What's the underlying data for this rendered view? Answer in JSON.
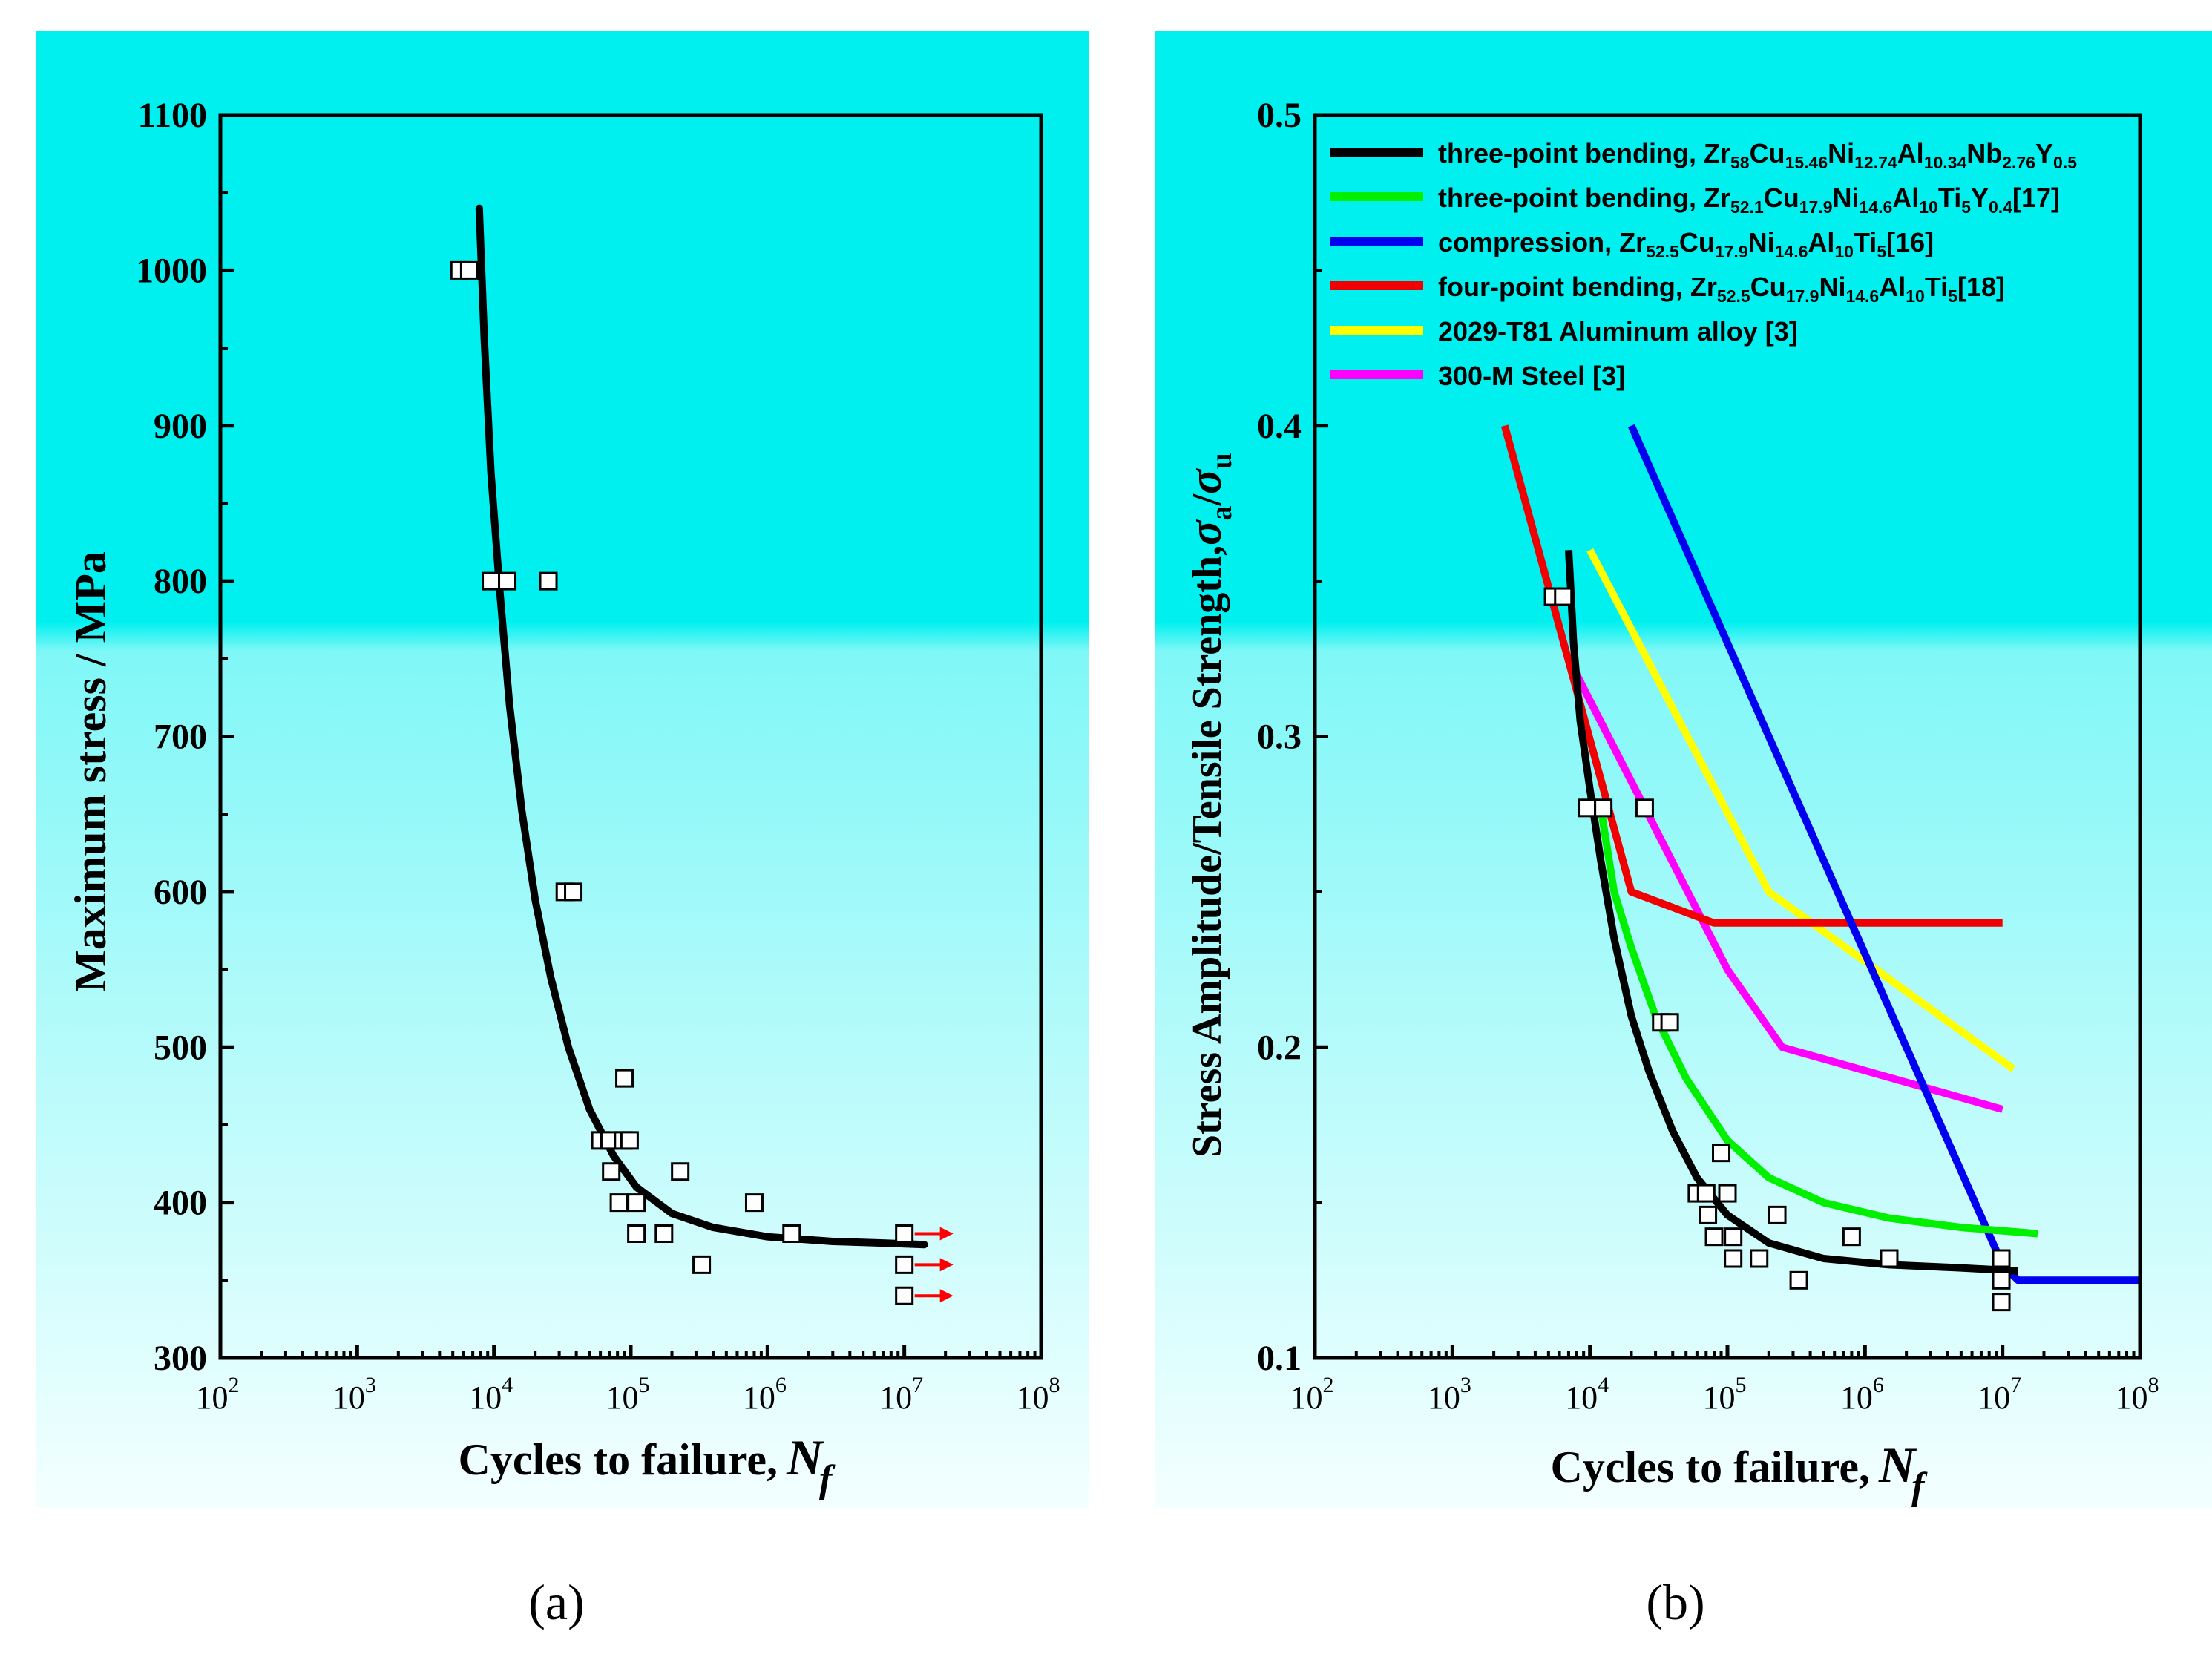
{
  "figure": {
    "captions": [
      "(a)",
      "(b)"
    ],
    "background_colors": {
      "top": "#00f0f0",
      "bottom": "#f4ffff"
    }
  },
  "chart_data": [
    {
      "type": "scatter",
      "panel": "a",
      "caption": "(a)",
      "xlabel": "Cycles to failure, N_f",
      "xlabel_text": "Cycles to failure,",
      "xlabel_var": "N",
      "xlabel_sub": "f",
      "ylabel": "Maximum stress / MPa",
      "xscale": "log",
      "xlim": [
        100,
        100000000
      ],
      "ylim": [
        300,
        1100
      ],
      "xticks": [
        {
          "value": 100,
          "exp": "2"
        },
        {
          "value": 1000,
          "exp": "3"
        },
        {
          "value": 10000,
          "exp": "4"
        },
        {
          "value": 100000,
          "exp": "5"
        },
        {
          "value": 1000000,
          "exp": "6"
        },
        {
          "value": 10000000,
          "exp": "7"
        },
        {
          "value": 100000000,
          "exp": "8"
        }
      ],
      "yticks": [
        "300",
        "400",
        "500",
        "600",
        "700",
        "800",
        "900",
        "1000",
        "1100"
      ],
      "fit_curve": {
        "color": "#000000",
        "points": [
          [
            7800,
            1040
          ],
          [
            8500,
            955
          ],
          [
            9500,
            870
          ],
          [
            11000,
            795
          ],
          [
            13000,
            720
          ],
          [
            16000,
            652
          ],
          [
            20000,
            595
          ],
          [
            26000,
            545
          ],
          [
            35000,
            500
          ],
          [
            50000,
            460
          ],
          [
            75000,
            430
          ],
          [
            110000,
            410
          ],
          [
            200000,
            393
          ],
          [
            400000,
            384
          ],
          [
            1000000,
            378
          ],
          [
            3000000,
            375
          ],
          [
            7000000,
            374
          ],
          [
            14000000,
            373
          ]
        ]
      },
      "points": [
        {
          "x": 5600,
          "y": 1000
        },
        {
          "x": 6600,
          "y": 1000
        },
        {
          "x": 9500,
          "y": 800
        },
        {
          "x": 12500,
          "y": 800
        },
        {
          "x": 25000,
          "y": 800
        },
        {
          "x": 33000,
          "y": 600
        },
        {
          "x": 38000,
          "y": 600
        },
        {
          "x": 90000,
          "y": 480
        },
        {
          "x": 60000,
          "y": 440
        },
        {
          "x": 70000,
          "y": 440
        },
        {
          "x": 88000,
          "y": 440
        },
        {
          "x": 98000,
          "y": 440
        },
        {
          "x": 72000,
          "y": 420
        },
        {
          "x": 230000,
          "y": 420
        },
        {
          "x": 82000,
          "y": 400
        },
        {
          "x": 110000,
          "y": 400
        },
        {
          "x": 800000,
          "y": 400
        },
        {
          "x": 110000,
          "y": 380
        },
        {
          "x": 175000,
          "y": 380
        },
        {
          "x": 1500000,
          "y": 380
        },
        {
          "x": 10000000,
          "y": 380
        },
        {
          "x": 330000,
          "y": 360
        },
        {
          "x": 10000000,
          "y": 360
        },
        {
          "x": 10000000,
          "y": 340
        }
      ],
      "runouts": [
        {
          "x": 10000000,
          "y": 380
        },
        {
          "x": 10000000,
          "y": 360
        },
        {
          "x": 10000000,
          "y": 340
        }
      ],
      "runout_color": "#ff0000"
    },
    {
      "type": "line",
      "panel": "b",
      "caption": "(b)",
      "xlabel": "Cycles to failure, N_f",
      "xlabel_text": "Cycles to failure,",
      "xlabel_var": "N",
      "xlabel_sub": "f",
      "ylabel": "Stress Amplitude/Tensile Strength,σa/σu",
      "ylabel_text": "Stress Amplitude/Tensile Strength,",
      "ylabel_math": {
        "sym1": "σ",
        "sub1": "a",
        "slash": "/",
        "sym2": "σ",
        "sub2": "u"
      },
      "xscale": "log",
      "xlim": [
        100,
        100000000
      ],
      "ylim": [
        0.1,
        0.5
      ],
      "xticks": [
        {
          "value": 100,
          "exp": "2"
        },
        {
          "value": 1000,
          "exp": "3"
        },
        {
          "value": 10000,
          "exp": "4"
        },
        {
          "value": 100000,
          "exp": "5"
        },
        {
          "value": 1000000,
          "exp": "6"
        },
        {
          "value": 10000000,
          "exp": "7"
        },
        {
          "value": 100000000,
          "exp": "8"
        }
      ],
      "yticks": [
        "0.1",
        "0.2",
        "0.3",
        "0.4",
        "0.5"
      ],
      "legend_position": "top-left",
      "series": [
        {
          "name": "three-point bending, Zr58Cu15.46Ni12.74Al10.34Nb2.76Y0.5",
          "label_parts": [
            {
              "t": "three-point bending, Zr"
            },
            {
              "t": "58",
              "sub": true
            },
            {
              "t": "Cu"
            },
            {
              "t": "15.46",
              "sub": true
            },
            {
              "t": "Ni"
            },
            {
              "t": "12.74",
              "sub": true
            },
            {
              "t": "Al"
            },
            {
              "t": "10.34",
              "sub": true
            },
            {
              "t": "Nb"
            },
            {
              "t": "2.76",
              "sub": true
            },
            {
              "t": "Y"
            },
            {
              "t": "0.5",
              "sub": true
            }
          ],
          "color": "#000000",
          "points": [
            [
              7000,
              0.36
            ],
            [
              7600,
              0.33
            ],
            [
              8500,
              0.305
            ],
            [
              10000,
              0.283
            ],
            [
              12000,
              0.26
            ],
            [
              15000,
              0.235
            ],
            [
              20000,
              0.21
            ],
            [
              27000,
              0.192
            ],
            [
              40000,
              0.173
            ],
            [
              60000,
              0.158
            ],
            [
              100000,
              0.146
            ],
            [
              200000,
              0.137
            ],
            [
              500000,
              0.132
            ],
            [
              1500000,
              0.13
            ],
            [
              5000000,
              0.129
            ],
            [
              13000000,
              0.128
            ]
          ]
        },
        {
          "name": "three-point bending, Zr52.1Cu17.9Ni14.6Al10Ti5Y0.4[17]",
          "label_parts": [
            {
              "t": "three-point bending, Zr"
            },
            {
              "t": "52.1",
              "sub": true
            },
            {
              "t": "Cu"
            },
            {
              "t": "17.9",
              "sub": true
            },
            {
              "t": "Ni"
            },
            {
              "t": "14.6",
              "sub": true
            },
            {
              "t": "Al"
            },
            {
              "t": "10",
              "sub": true
            },
            {
              "t": "Ti"
            },
            {
              "t": "5",
              "sub": true
            },
            {
              "t": "Y"
            },
            {
              "t": "0.4",
              "sub": true
            },
            {
              "t": "[17]"
            }
          ],
          "color": "#00f000",
          "points": [
            [
              12000,
              0.277
            ],
            [
              15000,
              0.25
            ],
            [
              20000,
              0.232
            ],
            [
              30000,
              0.21
            ],
            [
              50000,
              0.19
            ],
            [
              100000,
              0.17
            ],
            [
              200000,
              0.158
            ],
            [
              500000,
              0.15
            ],
            [
              1500000,
              0.145
            ],
            [
              5000000,
              0.142
            ],
            [
              18000000,
              0.14
            ]
          ]
        },
        {
          "name": "compression, Zr52.5Cu17.9Ni14.6Al10Ti5[16]",
          "label_parts": [
            {
              "t": "compression, Zr"
            },
            {
              "t": "52.5",
              "sub": true
            },
            {
              "t": "Cu"
            },
            {
              "t": "17.9",
              "sub": true
            },
            {
              "t": "Ni"
            },
            {
              "t": "14.6",
              "sub": true
            },
            {
              "t": "Al"
            },
            {
              "t": "10",
              "sub": true
            },
            {
              "t": "Ti"
            },
            {
              "t": "5",
              "sub": true
            },
            {
              "t": "[16]"
            }
          ],
          "color": "#0000f0",
          "points": [
            [
              20000,
              0.4
            ],
            [
              10000000,
              0.13
            ],
            [
              13000000,
              0.125
            ],
            [
              100000000,
              0.125
            ]
          ]
        },
        {
          "name": "four-point bending, Zr52.5Cu17.9Ni14.6Al10Ti5[18]",
          "label_parts": [
            {
              "t": "four-point bending, Zr"
            },
            {
              "t": "52.5",
              "sub": true
            },
            {
              "t": "Cu"
            },
            {
              "t": "17.9",
              "sub": true
            },
            {
              "t": "Ni"
            },
            {
              "t": "14.6",
              "sub": true
            },
            {
              "t": "Al"
            },
            {
              "t": "10",
              "sub": true
            },
            {
              "t": "Ti"
            },
            {
              "t": "5",
              "sub": true
            },
            {
              "t": "[18]"
            }
          ],
          "color": "#f00000",
          "points": [
            [
              2400,
              0.4
            ],
            [
              20000,
              0.25
            ],
            [
              80000,
              0.24
            ],
            [
              10000000,
              0.24
            ]
          ]
        },
        {
          "name": "2029-T81 Aluminum alloy [3]",
          "label_parts": [
            {
              "t": "2029-T81 Aluminum alloy [3]"
            }
          ],
          "color": "#ffff00",
          "points": [
            [
              10000,
              0.36
            ],
            [
              200000,
              0.25
            ],
            [
              12000000,
              0.193
            ]
          ]
        },
        {
          "name": "300-M Steel [3]",
          "label_parts": [
            {
              "t": "300-M Steel [3]"
            }
          ],
          "color": "#ff00ff",
          "points": [
            [
              8000,
              0.32
            ],
            [
              100000,
              0.225
            ],
            [
              250000,
              0.2
            ],
            [
              10000000,
              0.18
            ]
          ]
        }
      ],
      "points": [
        {
          "x": 5400,
          "y": 0.345
        },
        {
          "x": 6400,
          "y": 0.345
        },
        {
          "x": 9500,
          "y": 0.277
        },
        {
          "x": 12500,
          "y": 0.277
        },
        {
          "x": 25000,
          "y": 0.277
        },
        {
          "x": 33000,
          "y": 0.208
        },
        {
          "x": 38000,
          "y": 0.208
        },
        {
          "x": 90000,
          "y": 0.166
        },
        {
          "x": 60000,
          "y": 0.153
        },
        {
          "x": 70000,
          "y": 0.153
        },
        {
          "x": 100000,
          "y": 0.153
        },
        {
          "x": 72000,
          "y": 0.146
        },
        {
          "x": 230000,
          "y": 0.146
        },
        {
          "x": 80000,
          "y": 0.139
        },
        {
          "x": 110000,
          "y": 0.139
        },
        {
          "x": 800000,
          "y": 0.139
        },
        {
          "x": 110000,
          "y": 0.132
        },
        {
          "x": 170000,
          "y": 0.132
        },
        {
          "x": 1500000,
          "y": 0.132
        },
        {
          "x": 9800000,
          "y": 0.132
        },
        {
          "x": 330000,
          "y": 0.125
        },
        {
          "x": 9800000,
          "y": 0.125
        },
        {
          "x": 9800000,
          "y": 0.118
        }
      ]
    }
  ]
}
